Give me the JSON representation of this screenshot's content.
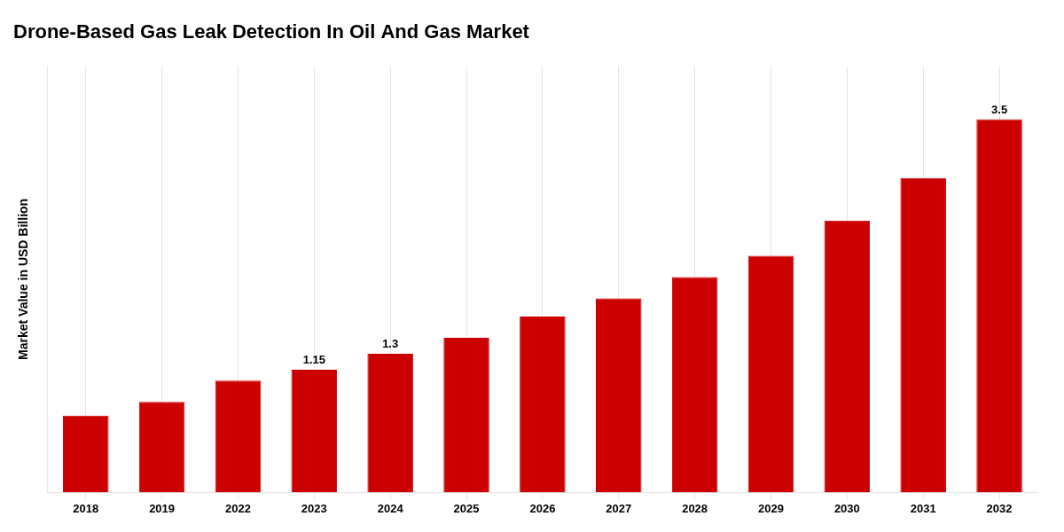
{
  "chart_data": {
    "type": "bar",
    "title": "Drone-Based Gas Leak Detection In Oil And Gas Market",
    "ylabel": "Market Value in USD Billion",
    "categories": [
      "2018",
      "2019",
      "2022",
      "2023",
      "2024",
      "2025",
      "2026",
      "2027",
      "2028",
      "2029",
      "2030",
      "2031",
      "2032"
    ],
    "values": [
      0.72,
      0.85,
      1.05,
      1.15,
      1.3,
      1.45,
      1.65,
      1.82,
      2.02,
      2.22,
      2.55,
      2.95,
      3.5
    ],
    "value_labels": [
      null,
      null,
      null,
      "1.15",
      "1.3",
      null,
      null,
      null,
      null,
      null,
      null,
      null,
      "3.5"
    ],
    "data_labels": true,
    "color": "#CC0000",
    "ylim": [
      0,
      4.0
    ],
    "grid": "x",
    "tick_labels": "x"
  }
}
